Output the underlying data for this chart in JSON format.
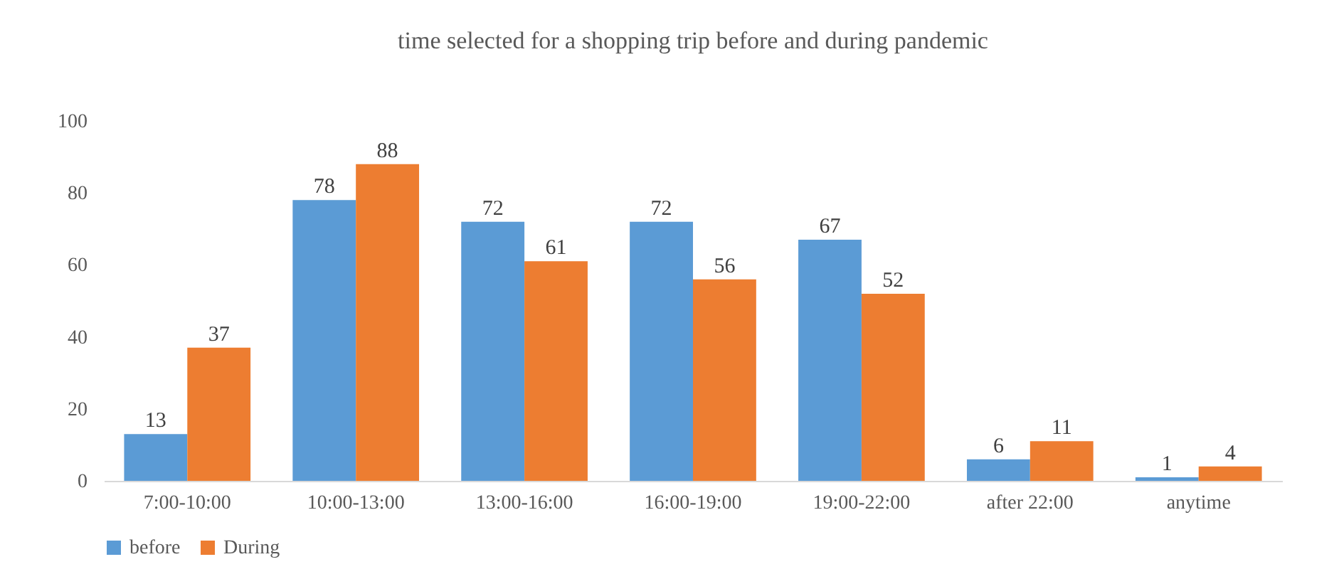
{
  "chart_data": {
    "type": "bar",
    "title": "time selected for a shopping trip before and during pandemic",
    "categories": [
      "7:00-10:00",
      "10:00-13:00",
      "13:00-16:00",
      "16:00-19:00",
      "19:00-22:00",
      "after 22:00",
      "anytime"
    ],
    "series": [
      {
        "name": "before",
        "color": "#5b9bd5",
        "values": [
          13,
          78,
          72,
          72,
          67,
          6,
          1
        ]
      },
      {
        "name": "During",
        "color": "#ed7d31",
        "values": [
          37,
          88,
          61,
          56,
          52,
          11,
          4
        ]
      }
    ],
    "ylim": [
      0,
      100
    ],
    "yticks": [
      0,
      20,
      40,
      60,
      80,
      100
    ],
    "data_labels": true,
    "legend": "bottom"
  }
}
